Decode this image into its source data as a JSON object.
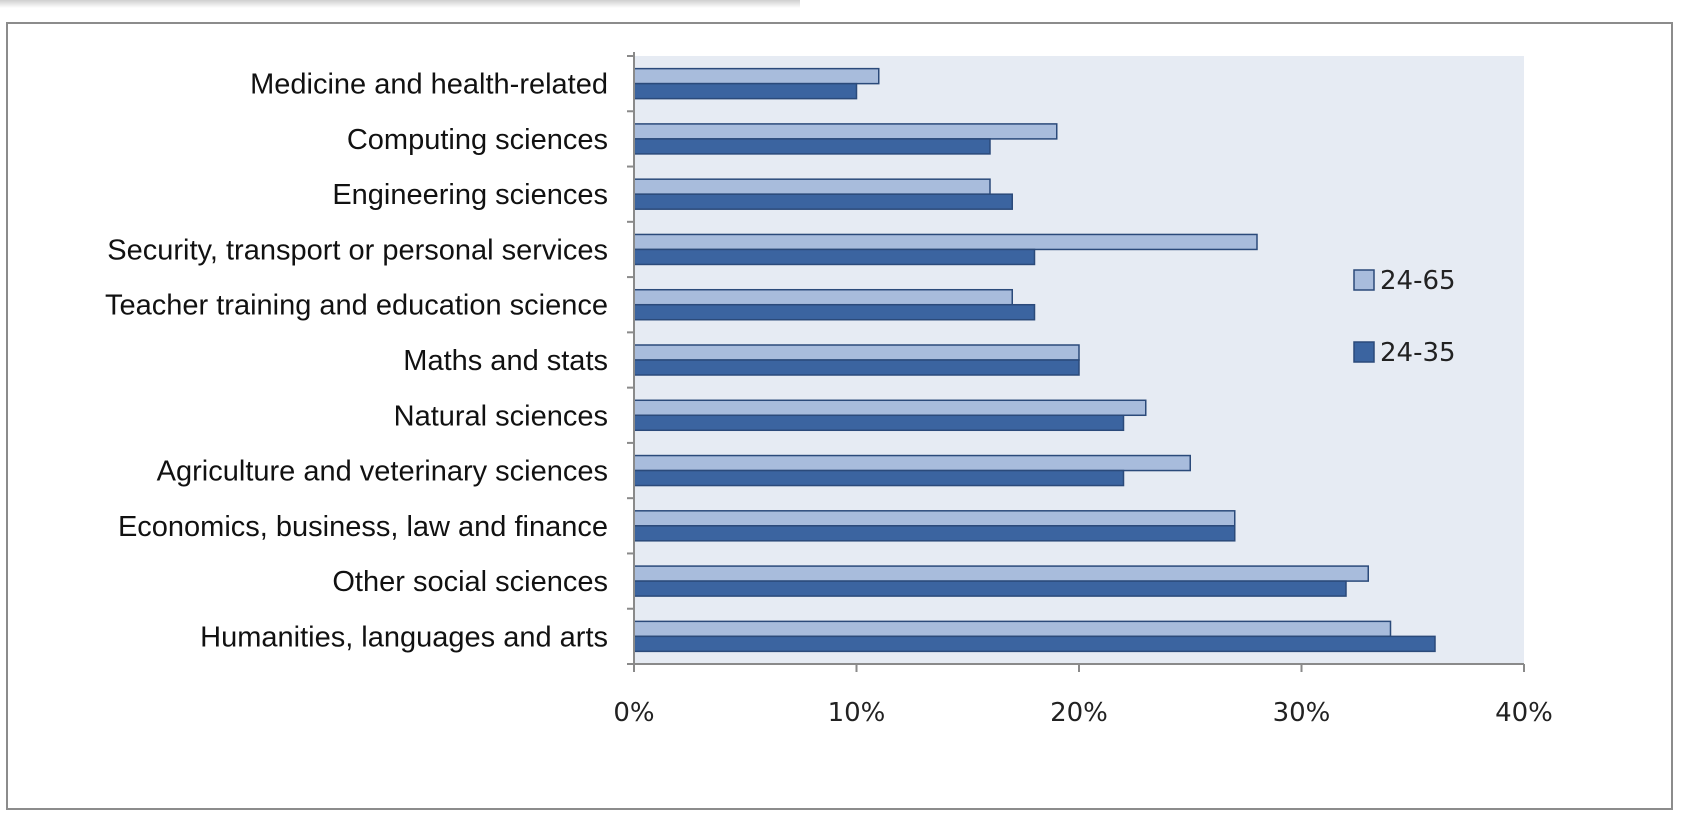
{
  "chart_data": {
    "type": "bar",
    "orientation": "horizontal",
    "title": "",
    "xlabel": "",
    "ylabel": "",
    "categories": [
      "Medicine and health-related",
      "Computing sciences",
      "Engineering sciences",
      "Security, transport or personal services",
      "Teacher training and education science",
      "Maths and stats",
      "Natural sciences",
      "Agriculture and veterinary sciences",
      "Economics, business, law and finance",
      "Other social sciences",
      "Humanities, languages and arts"
    ],
    "series": [
      {
        "name": "24-65",
        "color": "#a8bcdc",
        "values": [
          11,
          19,
          16,
          28,
          17,
          20,
          23,
          25,
          27,
          33,
          34
        ]
      },
      {
        "name": "24-35",
        "color": "#3b64a0",
        "values": [
          10,
          16,
          17,
          18,
          18,
          20,
          22,
          22,
          27,
          32,
          36
        ]
      }
    ],
    "xlim": [
      0,
      40
    ],
    "x_ticks": [
      0,
      10,
      20,
      30,
      40
    ],
    "x_tick_labels": [
      "0%",
      "10%",
      "20%",
      "30%",
      "40%"
    ],
    "grid": false,
    "plot_background": "#e6ebf3",
    "legend_position": "right"
  }
}
